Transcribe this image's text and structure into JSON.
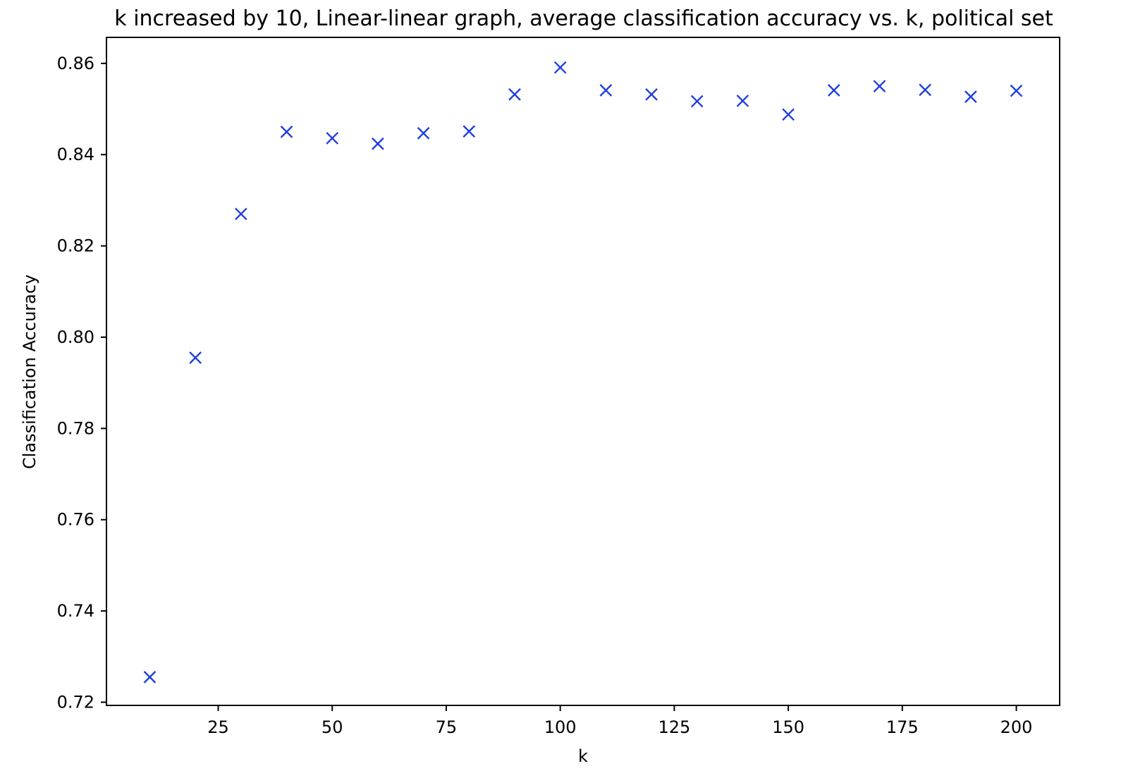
{
  "chart_data": {
    "type": "scatter",
    "title": "k increased by 10, Linear-linear graph, average classification accuracy vs. k, political set",
    "xlabel": "k",
    "ylabel": "Classification Accuracy",
    "x": [
      10,
      20,
      30,
      40,
      50,
      60,
      70,
      80,
      90,
      100,
      110,
      120,
      130,
      140,
      150,
      160,
      170,
      180,
      190,
      200
    ],
    "y": [
      0.7255,
      0.7955,
      0.827,
      0.845,
      0.8436,
      0.8424,
      0.8447,
      0.8451,
      0.8532,
      0.8591,
      0.8541,
      0.8532,
      0.8517,
      0.8518,
      0.8488,
      0.8541,
      0.855,
      0.8542,
      0.8527,
      0.854
    ],
    "xlim": [
      0.5,
      209.5
    ],
    "ylim": [
      0.7193,
      0.8657
    ],
    "xticks": [
      25,
      50,
      75,
      100,
      125,
      150,
      175,
      200
    ],
    "xtick_labels": [
      "25",
      "50",
      "75",
      "100",
      "125",
      "150",
      "175",
      "200"
    ],
    "yticks": [
      0.72,
      0.74,
      0.76,
      0.78,
      0.8,
      0.82,
      0.84,
      0.86
    ],
    "ytick_labels": [
      "0.72",
      "0.74",
      "0.76",
      "0.78",
      "0.80",
      "0.82",
      "0.84",
      "0.86"
    ],
    "marker": "x",
    "marker_color": "#1f3fe0",
    "grid": false,
    "legend": false
  }
}
